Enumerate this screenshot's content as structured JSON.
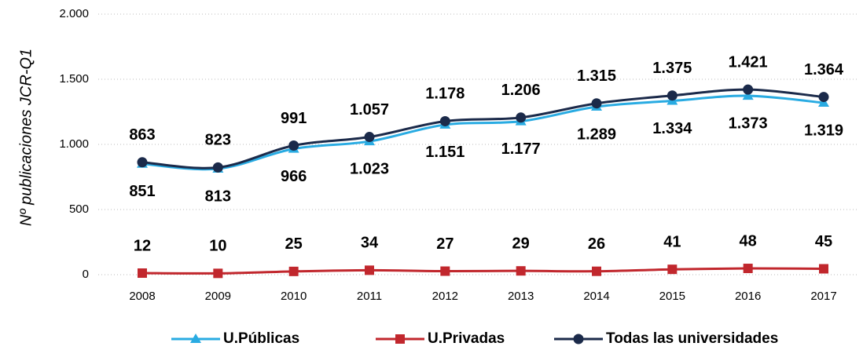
{
  "chart_data": {
    "type": "line",
    "y_axis_label": "Nº publicaciones JCR-Q1",
    "categories": [
      "2008",
      "2009",
      "2010",
      "2011",
      "2012",
      "2013",
      "2014",
      "2015",
      "2016",
      "2017"
    ],
    "ylim": [
      0,
      2000
    ],
    "yticks": [
      0,
      500,
      {
        "value": 1000,
        "label": "1.000"
      },
      {
        "value": 1500,
        "label": "1.500"
      },
      {
        "value": 2000,
        "label": "2.000"
      }
    ],
    "grid": true,
    "legend": "bottom",
    "series": [
      {
        "name": "U.Públicas",
        "color": "#29abe2",
        "marker": "triangle",
        "label_position": "below",
        "values": [
          851,
          813,
          966,
          1023,
          1151,
          1177,
          1289,
          1334,
          1373,
          1319
        ],
        "value_labels": [
          "851",
          "813",
          "966",
          "1.023",
          "1.151",
          "1.177",
          "1.289",
          "1.334",
          "1.373",
          "1.319"
        ]
      },
      {
        "name": "U.Privadas",
        "color": "#c1272d",
        "marker": "square",
        "label_position": "above",
        "values": [
          12,
          10,
          25,
          34,
          27,
          29,
          26,
          41,
          48,
          45
        ]
      },
      {
        "name": "Todas las universidades",
        "color": "#1b2a4a",
        "marker": "circle",
        "label_position": "above",
        "values": [
          863,
          823,
          991,
          1057,
          1178,
          1206,
          1315,
          1375,
          1421,
          1364
        ],
        "value_labels": [
          "863",
          "823",
          "991",
          "1.057",
          "1.178",
          "1.206",
          "1.315",
          "1.375",
          "1.421",
          "1.364"
        ]
      }
    ]
  }
}
